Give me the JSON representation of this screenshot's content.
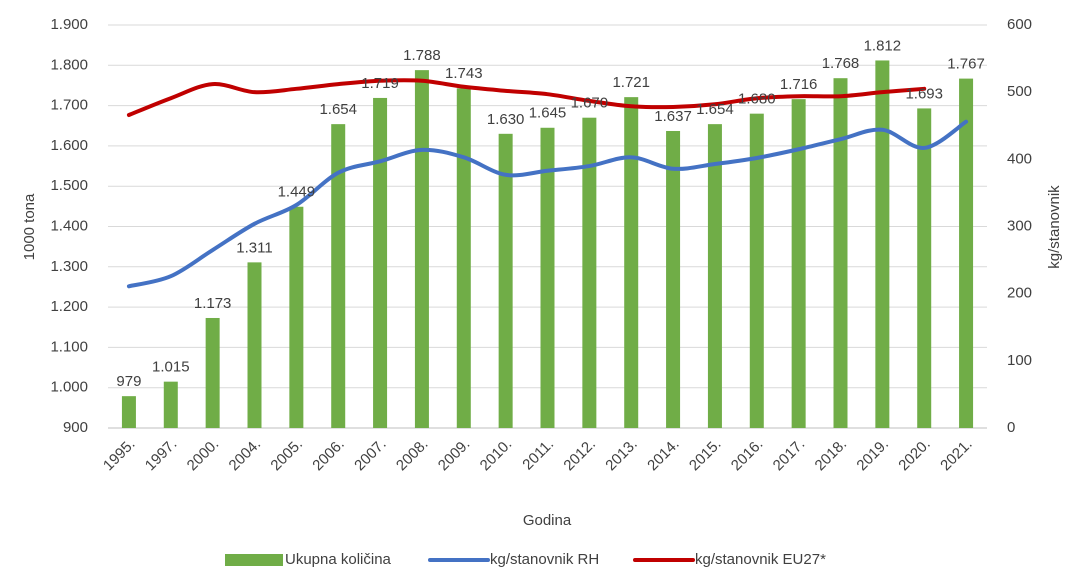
{
  "chart_data": {
    "type": "bar",
    "xlabel": "Godina",
    "ylabel": "1000 tona",
    "y2label": "kg/stanovnik",
    "categories": [
      "1995.",
      "1997.",
      "2000.",
      "2004.",
      "2005.",
      "2006.",
      "2007.",
      "2008.",
      "2009.",
      "2010.",
      "2011.",
      "2012.",
      "2013.",
      "2014.",
      "2015.",
      "2016.",
      "2017.",
      "2018.",
      "2019.",
      "2020.",
      "2021."
    ],
    "series": [
      {
        "name": "Ukupna količina",
        "type": "bar",
        "color": "#70ad47",
        "values": [
          979,
          1015,
          1173,
          1311,
          1449,
          1654,
          1719,
          1788,
          1743,
          1630,
          1645,
          1670,
          1721,
          1637,
          1654,
          1680,
          1716,
          1768,
          1812,
          1693,
          1767
        ],
        "value_labels": [
          "979",
          "1.015",
          "1.173",
          "1.311",
          "1.449",
          "1.654",
          "1.719",
          "1.788",
          "1.743",
          "1.630",
          "1.645",
          "1.670",
          "1.721",
          "1.637",
          "1.654",
          "1.680",
          "1.716",
          "1.768",
          "1.812",
          "1.693",
          "1.767"
        ]
      },
      {
        "name": "kg/stanovnik RH",
        "type": "line",
        "axis": "y2",
        "color": "#4472c4",
        "values": [
          211,
          226,
          265,
          304,
          332,
          380,
          397,
          414,
          403,
          377,
          383,
          390,
          403,
          386,
          393,
          402,
          415,
          430,
          444,
          417,
          456
        ]
      },
      {
        "name": "kg/stanovnik EU27*",
        "type": "line",
        "axis": "y2",
        "color": "#c00000",
        "values": [
          466,
          491,
          512,
          500,
          505,
          512,
          517,
          517,
          508,
          502,
          497,
          487,
          479,
          478,
          482,
          491,
          494,
          494,
          500,
          505,
          null
        ]
      }
    ],
    "ylim": [
      900,
      1900
    ],
    "yticks": [
      900,
      {
        "value": 1000,
        "label": "1.000"
      },
      {
        "value": 1100,
        "label": "1.100"
      },
      {
        "value": 1200,
        "label": "1.200"
      },
      {
        "value": 1300,
        "label": "1.300"
      },
      {
        "value": 1400,
        "label": "1.400"
      },
      {
        "value": 1500,
        "label": "1.500"
      },
      {
        "value": 1600,
        "label": "1.600"
      },
      {
        "value": 1700,
        "label": "1.700"
      },
      {
        "value": 1800,
        "label": "1.800"
      },
      {
        "value": 1900,
        "label": "1.900"
      }
    ],
    "y2lim": [
      0,
      600
    ],
    "y2ticks": [
      0,
      100,
      200,
      300,
      400,
      500,
      600
    ],
    "grid": true,
    "legend": "bottom"
  }
}
